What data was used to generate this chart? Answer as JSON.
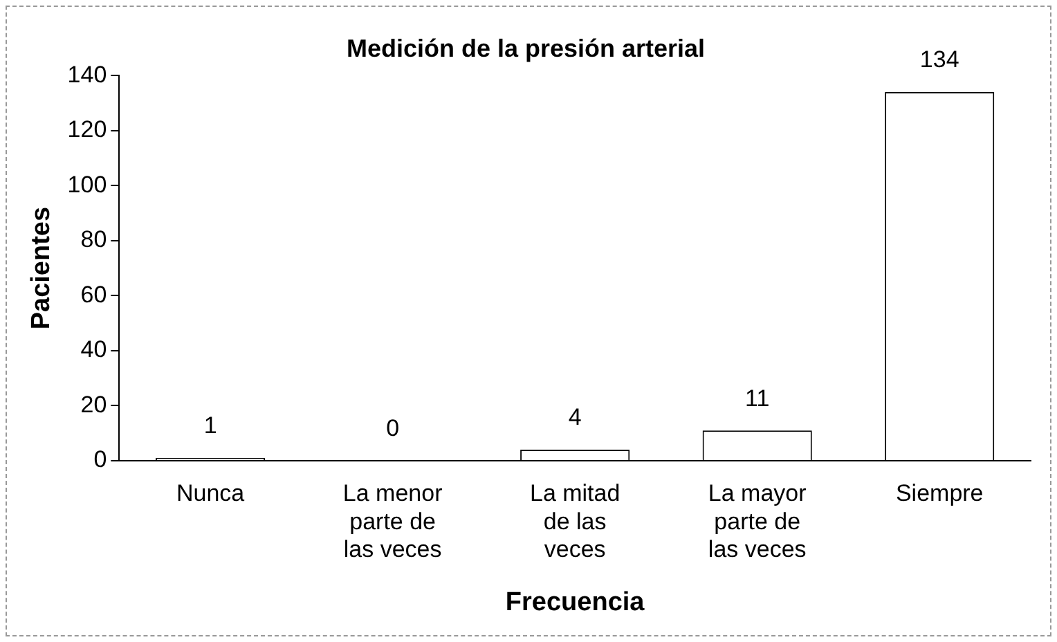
{
  "chart_data": {
    "type": "bar",
    "title": "Medición de la presión arterial",
    "xlabel": "Frecuencia",
    "ylabel": "Pacientes",
    "categories": [
      "Nunca",
      "La menor parte de las veces",
      "La mitad de las veces",
      "La mayor parte de las veces",
      "Siempre"
    ],
    "values": [
      1,
      0,
      4,
      11,
      134
    ],
    "color": "#ffffff",
    "ylim": [
      0,
      140
    ],
    "yticks": [
      0,
      20,
      40,
      60,
      80,
      100,
      120,
      140
    ],
    "grid": false,
    "legend": false,
    "data_labels": true
  }
}
